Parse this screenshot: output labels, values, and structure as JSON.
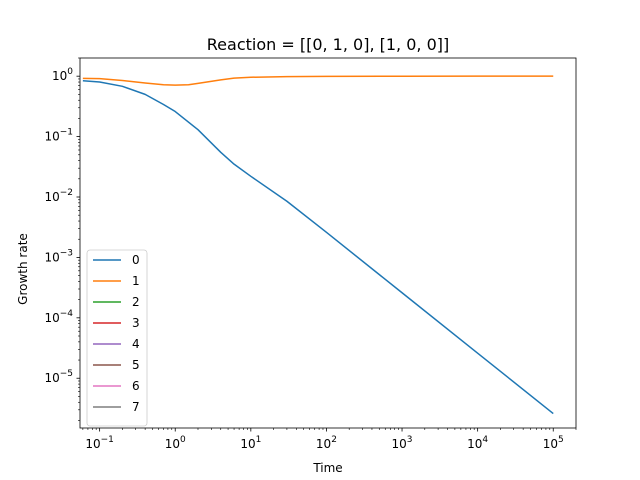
{
  "chart_data": {
    "type": "line",
    "title": "Reaction = [[0, 1, 0], [1, 0, 0]]",
    "xlabel": "Time",
    "ylabel": "Growth rate",
    "xscale": "log",
    "yscale": "log",
    "xlim": [
      0.055,
      200000
    ],
    "ylim": [
      1.5e-06,
      2.0
    ],
    "grid": false,
    "legend_position": "lower-left",
    "x_ticks": [
      {
        "value": 0.1,
        "base": "10",
        "exp": "−1"
      },
      {
        "value": 1,
        "base": "10",
        "exp": "0"
      },
      {
        "value": 10,
        "base": "10",
        "exp": "1"
      },
      {
        "value": 100,
        "base": "10",
        "exp": "2"
      },
      {
        "value": 1000,
        "base": "10",
        "exp": "3"
      },
      {
        "value": 10000,
        "base": "10",
        "exp": "4"
      },
      {
        "value": 100000,
        "base": "10",
        "exp": "5"
      }
    ],
    "y_ticks": [
      {
        "value": 1e-05,
        "base": "10",
        "exp": "−5"
      },
      {
        "value": 0.0001,
        "base": "10",
        "exp": "−4"
      },
      {
        "value": 0.001,
        "base": "10",
        "exp": "−3"
      },
      {
        "value": 0.01,
        "base": "10",
        "exp": "−2"
      },
      {
        "value": 0.1,
        "base": "10",
        "exp": "−1"
      },
      {
        "value": 1,
        "base": "10",
        "exp": "0"
      }
    ],
    "series": [
      {
        "name": "0",
        "color": "#1f77b4",
        "x": [
          0.06,
          0.1,
          0.2,
          0.4,
          0.7,
          1,
          2,
          4,
          6,
          10,
          30,
          100,
          1000,
          10000,
          100000
        ],
        "y": [
          0.84,
          0.8,
          0.68,
          0.5,
          0.34,
          0.26,
          0.13,
          0.055,
          0.035,
          0.022,
          0.0085,
          0.0026,
          0.00026,
          2.6e-05,
          2.6e-06
        ]
      },
      {
        "name": "1",
        "color": "#ff7f0e",
        "x": [
          0.06,
          0.1,
          0.2,
          0.4,
          0.7,
          1,
          1.5,
          2,
          4,
          6,
          10,
          30,
          100,
          1000,
          10000,
          100000
        ],
        "y": [
          0.92,
          0.91,
          0.85,
          0.77,
          0.72,
          0.71,
          0.72,
          0.76,
          0.87,
          0.93,
          0.96,
          0.985,
          0.995,
          0.999,
          1.0,
          1.0
        ]
      },
      {
        "name": "2",
        "color": "#2ca02c",
        "x": [],
        "y": []
      },
      {
        "name": "3",
        "color": "#d62728",
        "x": [],
        "y": []
      },
      {
        "name": "4",
        "color": "#9467bd",
        "x": [],
        "y": []
      },
      {
        "name": "5",
        "color": "#8c564b",
        "x": [],
        "y": []
      },
      {
        "name": "6",
        "color": "#e377c2",
        "x": [],
        "y": []
      },
      {
        "name": "7",
        "color": "#7f7f7f",
        "x": [],
        "y": []
      }
    ]
  }
}
